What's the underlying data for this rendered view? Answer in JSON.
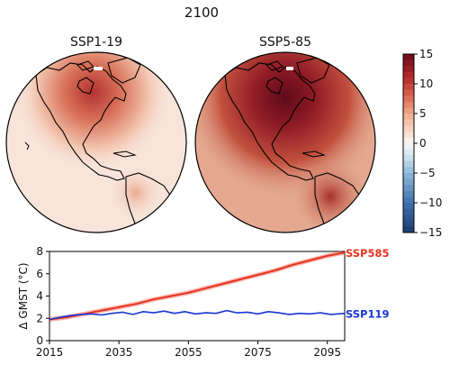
{
  "figure": {
    "title": "2100"
  },
  "maps": [
    {
      "title": "SSP1-19"
    },
    {
      "title": "SSP5-85"
    }
  ],
  "colorbar": {
    "ticks": [
      15,
      10,
      5,
      0,
      -5,
      -10,
      -15
    ],
    "range": [
      -15,
      15
    ],
    "colormap": "RdBu_r"
  },
  "chart_data": {
    "type": "line",
    "title": "",
    "xlabel": "",
    "ylabel": "Δ GMST (°C)",
    "xlim": [
      2015,
      2100
    ],
    "ylim": [
      0,
      8
    ],
    "xticks": [
      2015,
      2035,
      2055,
      2075,
      2095
    ],
    "yticks": [
      0,
      2,
      4,
      6,
      8
    ],
    "grid": false,
    "series": [
      {
        "name": "SSP585",
        "color": "#e8321f",
        "x": [
          2015,
          2020,
          2025,
          2030,
          2035,
          2040,
          2045,
          2050,
          2055,
          2060,
          2065,
          2070,
          2075,
          2080,
          2085,
          2090,
          2095,
          2100
        ],
        "values": [
          1.9,
          2.1,
          2.4,
          2.7,
          3.0,
          3.3,
          3.7,
          4.0,
          4.3,
          4.7,
          5.1,
          5.5,
          5.9,
          6.3,
          6.8,
          7.2,
          7.6,
          7.9
        ]
      },
      {
        "name": "SSP119",
        "color": "#1a35d6",
        "x": [
          2015,
          2018,
          2021,
          2024,
          2027,
          2030,
          2033,
          2036,
          2039,
          2042,
          2045,
          2048,
          2051,
          2054,
          2057,
          2060,
          2063,
          2066,
          2069,
          2072,
          2075,
          2078,
          2081,
          2084,
          2087,
          2090,
          2093,
          2096,
          2100
        ],
        "values": [
          1.9,
          2.1,
          2.25,
          2.35,
          2.4,
          2.3,
          2.45,
          2.55,
          2.35,
          2.6,
          2.5,
          2.65,
          2.45,
          2.6,
          2.4,
          2.5,
          2.45,
          2.7,
          2.5,
          2.55,
          2.4,
          2.6,
          2.5,
          2.35,
          2.45,
          2.4,
          2.5,
          2.35,
          2.45
        ]
      }
    ]
  }
}
